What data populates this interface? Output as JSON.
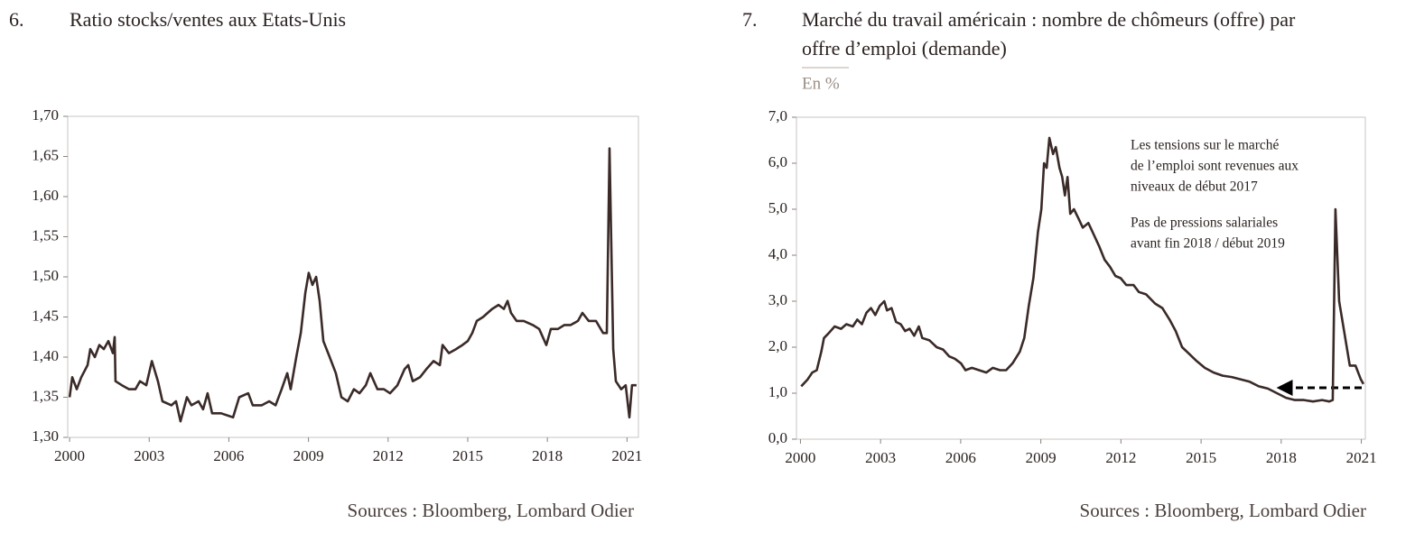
{
  "chart_data": [
    {
      "type": "line",
      "number": "6.",
      "title": [
        "Ratio stocks/ventes aux Etats-Unis"
      ],
      "color": "#3a2a28",
      "x": [
        2000.0,
        2000.1,
        2000.27,
        2000.44,
        2000.68,
        2000.78,
        2000.95,
        2001.12,
        2001.29,
        2001.46,
        2001.63,
        2001.7,
        2001.73,
        2001.97,
        2002.24,
        2002.48,
        2002.65,
        2002.89,
        2003.1,
        2003.33,
        2003.5,
        2003.84,
        2004.01,
        2004.18,
        2004.42,
        2004.59,
        2004.86,
        2005.03,
        2005.2,
        2005.37,
        2005.71,
        2006.16,
        2006.39,
        2006.73,
        2006.9,
        2007.24,
        2007.52,
        2007.76,
        2007.99,
        2008.2,
        2008.33,
        2008.54,
        2008.71,
        2008.88,
        2009.01,
        2009.15,
        2009.29,
        2009.42,
        2009.56,
        2009.8,
        2010.03,
        2010.24,
        2010.48,
        2010.71,
        2010.92,
        2011.16,
        2011.33,
        2011.6,
        2011.84,
        2012.07,
        2012.35,
        2012.62,
        2012.76,
        2012.93,
        2013.2,
        2013.44,
        2013.71,
        2013.95,
        2014.05,
        2014.29,
        2014.56,
        2014.8,
        2015.0,
        2015.17,
        2015.34,
        2015.58,
        2015.75,
        2015.92,
        2016.16,
        2016.36,
        2016.5,
        2016.63,
        2016.84,
        2017.11,
        2017.45,
        2017.69,
        2017.96,
        2018.13,
        2018.4,
        2018.64,
        2018.88,
        2019.15,
        2019.32,
        2019.56,
        2019.83,
        2020.1,
        2020.24,
        2020.34,
        2020.48,
        2020.58,
        2020.78,
        2020.95,
        2021.09,
        2021.19,
        2021.36
      ],
      "values": [
        1.35,
        1.375,
        1.36,
        1.375,
        1.39,
        1.41,
        1.4,
        1.415,
        1.41,
        1.42,
        1.405,
        1.425,
        1.37,
        1.365,
        1.36,
        1.36,
        1.37,
        1.365,
        1.395,
        1.37,
        1.345,
        1.34,
        1.345,
        1.32,
        1.35,
        1.34,
        1.345,
        1.335,
        1.355,
        1.33,
        1.33,
        1.325,
        1.35,
        1.355,
        1.34,
        1.34,
        1.345,
        1.34,
        1.36,
        1.38,
        1.36,
        1.4,
        1.43,
        1.48,
        1.505,
        1.49,
        1.5,
        1.47,
        1.42,
        1.4,
        1.38,
        1.35,
        1.345,
        1.36,
        1.355,
        1.365,
        1.38,
        1.36,
        1.36,
        1.355,
        1.365,
        1.385,
        1.39,
        1.37,
        1.375,
        1.385,
        1.395,
        1.39,
        1.415,
        1.405,
        1.41,
        1.415,
        1.42,
        1.43,
        1.445,
        1.45,
        1.455,
        1.46,
        1.465,
        1.46,
        1.47,
        1.455,
        1.445,
        1.445,
        1.44,
        1.435,
        1.415,
        1.435,
        1.435,
        1.44,
        1.44,
        1.445,
        1.455,
        1.445,
        1.445,
        1.43,
        1.43,
        1.66,
        1.41,
        1.37,
        1.36,
        1.365,
        1.325,
        1.365,
        1.365
      ],
      "xlim": [
        1999.93,
        2021.43
      ],
      "xticks": [
        2000,
        2003,
        2006,
        2009,
        2012,
        2015,
        2018,
        2021
      ],
      "ylim": [
        1.3,
        1.7
      ],
      "yticks": [
        {
          "value": 1.3,
          "label": "1,30"
        },
        {
          "value": 1.35,
          "label": "1,35"
        },
        {
          "value": 1.4,
          "label": "1,40"
        },
        {
          "value": 1.45,
          "label": "1,45"
        },
        {
          "value": 1.5,
          "label": "1,50"
        },
        {
          "value": 1.55,
          "label": "1,55"
        },
        {
          "value": 1.6,
          "label": "1,60"
        },
        {
          "value": 1.65,
          "label": "1,65"
        },
        {
          "value": 1.7,
          "label": "1,70"
        }
      ],
      "source": "Sources : Bloomberg, Lombard Odier"
    },
    {
      "type": "line",
      "number": "7.",
      "title": [
        "Marché du travail américain : nombre de chômeurs (offre) par",
        "offre d’emploi (demande)"
      ],
      "subtitle": "En %",
      "color": "#3a2a28",
      "x": [
        2000.03,
        2000.27,
        2000.44,
        2000.61,
        2000.78,
        2000.88,
        2001.05,
        2001.28,
        2001.52,
        2001.72,
        2001.96,
        2002.13,
        2002.3,
        2002.47,
        2002.64,
        2002.8,
        2002.97,
        2003.14,
        2003.24,
        2003.41,
        2003.58,
        2003.75,
        2003.92,
        2004.09,
        2004.26,
        2004.43,
        2004.56,
        2004.83,
        2005.1,
        2005.34,
        2005.57,
        2005.78,
        2006.01,
        2006.18,
        2006.42,
        2006.69,
        2006.96,
        2007.2,
        2007.47,
        2007.7,
        2007.94,
        2008.21,
        2008.38,
        2008.55,
        2008.72,
        2008.89,
        2009.02,
        2009.12,
        2009.22,
        2009.32,
        2009.46,
        2009.56,
        2009.7,
        2009.8,
        2009.9,
        2010.0,
        2010.1,
        2010.24,
        2010.41,
        2010.57,
        2010.78,
        2010.98,
        2011.18,
        2011.39,
        2011.59,
        2011.79,
        2011.99,
        2012.2,
        2012.47,
        2012.67,
        2012.94,
        2013.28,
        2013.55,
        2013.82,
        2014.05,
        2014.29,
        2014.56,
        2014.83,
        2015.14,
        2015.47,
        2015.81,
        2016.15,
        2016.49,
        2016.82,
        2017.16,
        2017.5,
        2017.84,
        2018.18,
        2018.51,
        2018.85,
        2019.19,
        2019.53,
        2019.8,
        2019.93,
        2020.03,
        2020.17,
        2020.37,
        2020.57,
        2020.78,
        2020.98,
        2021.08
      ],
      "values": [
        1.15,
        1.3,
        1.45,
        1.5,
        1.9,
        2.2,
        2.3,
        2.45,
        2.4,
        2.5,
        2.45,
        2.6,
        2.5,
        2.75,
        2.85,
        2.7,
        2.9,
        3.0,
        2.8,
        2.85,
        2.55,
        2.5,
        2.35,
        2.4,
        2.25,
        2.45,
        2.2,
        2.15,
        2.0,
        1.95,
        1.8,
        1.75,
        1.65,
        1.5,
        1.55,
        1.5,
        1.45,
        1.55,
        1.5,
        1.5,
        1.65,
        1.9,
        2.2,
        2.9,
        3.5,
        4.5,
        5.0,
        6.0,
        5.9,
        6.55,
        6.2,
        6.35,
        5.9,
        5.7,
        5.3,
        5.7,
        4.9,
        5.0,
        4.8,
        4.6,
        4.7,
        4.45,
        4.2,
        3.9,
        3.75,
        3.55,
        3.5,
        3.35,
        3.35,
        3.2,
        3.15,
        2.95,
        2.85,
        2.6,
        2.35,
        2.0,
        1.85,
        1.7,
        1.55,
        1.45,
        1.38,
        1.35,
        1.3,
        1.25,
        1.15,
        1.1,
        1.0,
        0.9,
        0.85,
        0.85,
        0.82,
        0.85,
        0.82,
        0.85,
        5.0,
        3.0,
        2.3,
        1.6,
        1.6,
        1.3,
        1.2
      ],
      "xlim": [
        1999.85,
        2021.15
      ],
      "xticks": [
        2000,
        2003,
        2006,
        2009,
        2012,
        2015,
        2018,
        2021
      ],
      "ylim": [
        0,
        7
      ],
      "yticks": [
        {
          "value": 0,
          "label": "0,0"
        },
        {
          "value": 1,
          "label": "1,0"
        },
        {
          "value": 2,
          "label": "2,0"
        },
        {
          "value": 3,
          "label": "3,0"
        },
        {
          "value": 4,
          "label": "4,0"
        },
        {
          "value": 5,
          "label": "5,0"
        },
        {
          "value": 6,
          "label": "6,0"
        },
        {
          "value": 7,
          "label": "7,0"
        }
      ],
      "annotations": [
        "Les tensions sur le marché",
        "de l’emploi sont revenues aux",
        "niveaux de début 2017",
        "Pas de pressions salariales",
        "avant fin 2018 / début 2019"
      ],
      "source": "Sources : Bloomberg, Lombard Odier"
    }
  ]
}
